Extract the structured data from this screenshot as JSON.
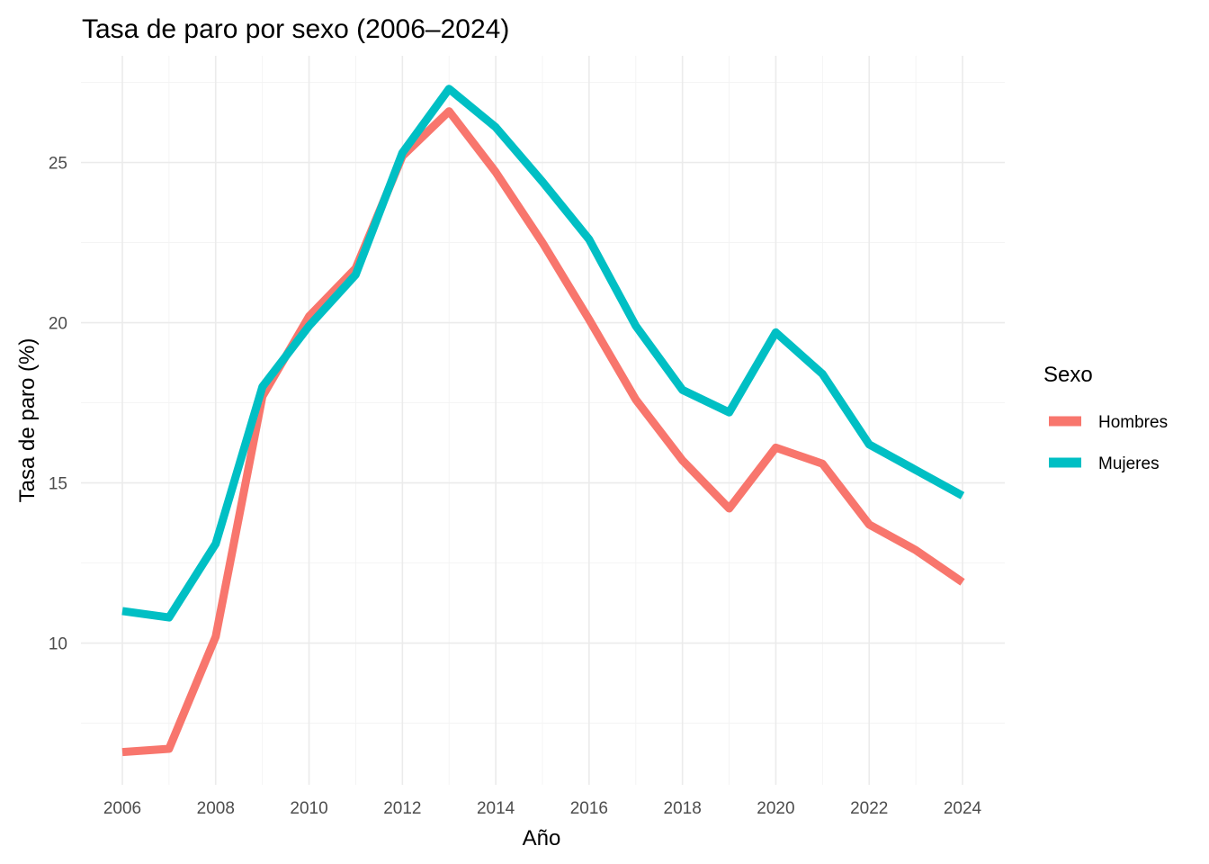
{
  "chart_data": {
    "type": "line",
    "title": "Tasa de paro por sexo (2006–2024)",
    "xlabel": "Año",
    "ylabel": "Tasa de paro (%)",
    "x": [
      2006,
      2007,
      2008,
      2009,
      2010,
      2011,
      2012,
      2013,
      2014,
      2015,
      2016,
      2017,
      2018,
      2019,
      2020,
      2021,
      2022,
      2023,
      2024
    ],
    "xticks": [
      2006,
      2008,
      2010,
      2012,
      2014,
      2016,
      2018,
      2020,
      2022,
      2024
    ],
    "xlim": [
      2006,
      2024
    ],
    "yticks": [
      10,
      15,
      20,
      25
    ],
    "ylim": [
      6.56,
      27.32
    ],
    "grid": true,
    "legend": {
      "title": "Sexo",
      "position": "right"
    },
    "series": [
      {
        "name": "Hombres",
        "color": "#F8766D",
        "values": [
          6.6,
          6.7,
          10.2,
          17.7,
          20.2,
          21.7,
          25.2,
          26.6,
          24.7,
          22.5,
          20.1,
          17.6,
          15.7,
          14.2,
          16.1,
          15.6,
          13.7,
          12.9,
          11.9
        ]
      },
      {
        "name": "Mujeres",
        "color": "#00BFC4",
        "values": [
          11.0,
          10.8,
          13.1,
          18.0,
          19.9,
          21.5,
          25.3,
          27.3,
          26.1,
          24.4,
          22.6,
          19.9,
          17.9,
          17.2,
          19.7,
          18.4,
          16.2,
          15.4,
          14.6
        ]
      }
    ]
  }
}
